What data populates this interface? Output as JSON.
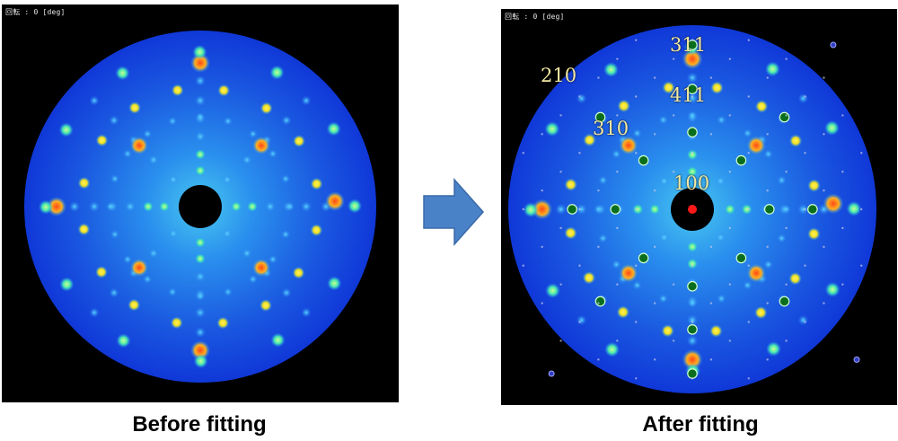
{
  "left": {
    "rotation_label": "回転 : 0 [deg]",
    "caption": "Before fitting"
  },
  "right": {
    "rotation_label": "回転 : 0 [deg]",
    "caption": "After fitting",
    "miller_labels": [
      "311",
      "210",
      "411",
      "310",
      "100"
    ]
  },
  "colors": {
    "pattern_edge": "#1038d8",
    "pattern_center": "#48c8f0",
    "spot_strong": "#ff4818",
    "spot_mid": "#f0e020",
    "spot_weak": "#48e8b0",
    "marker_green": "#0a6e1e",
    "label": "#f2e8a0",
    "arrow_fill": "#4a82c8"
  },
  "icons": {
    "arrow": "right-arrow-icon"
  }
}
